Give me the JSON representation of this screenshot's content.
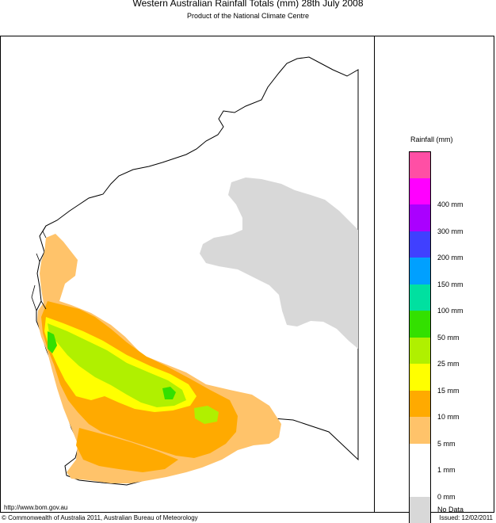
{
  "header": {
    "title": "Western Australian Rainfall Totals (mm) 28th July 2008",
    "subtitle": "Product of the National Climate Centre"
  },
  "legend": {
    "title": "Rainfall (mm)",
    "bins": [
      {
        "color": "#ff4fa5",
        "label": ""
      },
      {
        "color": "#ff00ff",
        "label": "400 mm"
      },
      {
        "color": "#aa00ff",
        "label": "300 mm"
      },
      {
        "color": "#4040ff",
        "label": "200 mm"
      },
      {
        "color": "#00a0ff",
        "label": "150 mm"
      },
      {
        "color": "#00e0a0",
        "label": "100 mm"
      },
      {
        "color": "#33e000",
        "label": "50 mm"
      },
      {
        "color": "#b0f000",
        "label": "25 mm"
      },
      {
        "color": "#ffff00",
        "label": "15 mm"
      },
      {
        "color": "#ffaa00",
        "label": "10 mm"
      },
      {
        "color": "#ffc36a",
        "label": "5 mm"
      },
      {
        "color": "#ffffff",
        "label": "1 mm"
      },
      {
        "color": "#ffffff",
        "label": "0 mm"
      },
      {
        "color": "#d8d8d8",
        "label": "No Data"
      }
    ]
  },
  "colors": {
    "no_data": "#d8d8d8",
    "c1_5": "#ffc36a",
    "c5_10": "#ffaa00",
    "c10_15": "#ffff00",
    "c15_25": "#b0f000",
    "c25_50": "#33e000",
    "coast": "#000000"
  },
  "footer": {
    "url": "http://www.bom.gov.au",
    "copyright": "© Commonwealth of Australia 2011, Australian Bureau of Meteorology",
    "issued": "Issued: 12/02/2011"
  }
}
